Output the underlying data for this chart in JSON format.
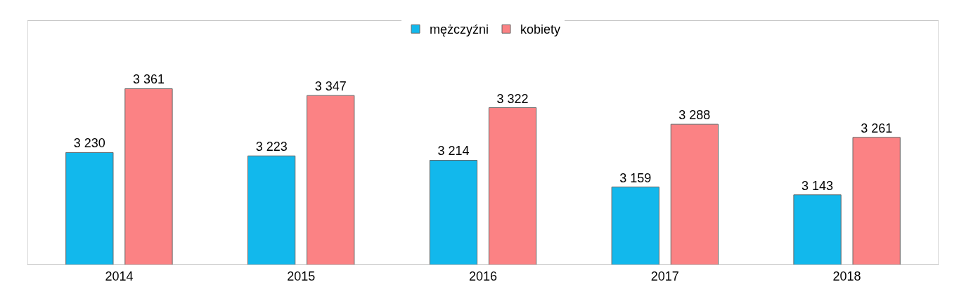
{
  "chart_data": {
    "type": "bar",
    "categories": [
      "2014",
      "2015",
      "2016",
      "2017",
      "2018"
    ],
    "series": [
      {
        "name": "mężczyźni",
        "color": "#12b8ec",
        "values": [
          3230,
          3223,
          3214,
          3159,
          3143
        ]
      },
      {
        "name": "kobiety",
        "color": "#fb8284",
        "values": [
          3361,
          3347,
          3322,
          3288,
          3261
        ]
      }
    ],
    "ylim": [
      3000,
      3500
    ],
    "tick_labels": "x",
    "data_labels": true,
    "legend": "top"
  }
}
